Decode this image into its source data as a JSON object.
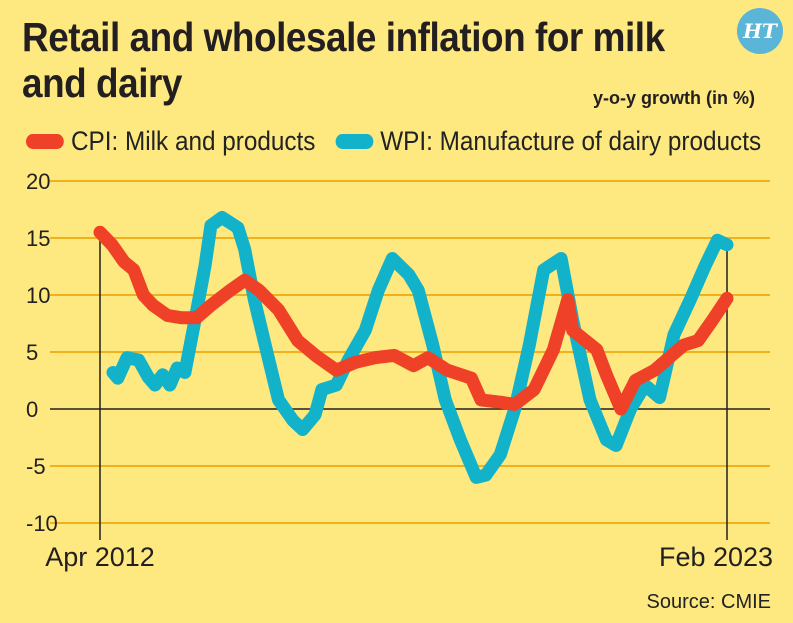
{
  "chart_data": {
    "type": "line",
    "title": "Retail and wholesale inflation for milk and dairy",
    "subtitle": "y-o-y growth (in %)",
    "xlabel": "",
    "ylabel": "y-o-y growth (in %)",
    "x_unit": "months since Apr 2012",
    "x_range": [
      0,
      130
    ],
    "x_tick_labels": [
      "Apr 2012",
      "Feb 2023"
    ],
    "ylim": [
      -10,
      20
    ],
    "y_ticks": [
      -10,
      -5,
      0,
      5,
      10,
      15,
      20
    ],
    "grid": true,
    "legend_placement": "top",
    "source": "Source: CMIE",
    "series": [
      {
        "name": "CPI: Milk and products",
        "color": "#ee4127",
        "x": [
          0,
          2.5,
          5,
          7,
          9,
          11,
          14,
          17,
          20,
          23,
          27,
          30,
          33,
          37,
          41,
          45,
          49,
          53,
          57,
          61,
          65,
          68,
          72,
          77,
          79,
          83,
          86,
          90,
          94,
          97,
          98,
          103,
          105,
          108,
          111,
          115,
          118,
          121,
          124,
          127,
          130
        ],
        "values": [
          15.5,
          14.4,
          12.9,
          12.2,
          10,
          9.1,
          8.2,
          8,
          8,
          9.1,
          10.4,
          11.3,
          10.4,
          8.7,
          6,
          4.6,
          3.4,
          4.1,
          4.5,
          4.7,
          3.8,
          4.5,
          3.4,
          2.7,
          0.8,
          0.6,
          0.4,
          1.7,
          5.2,
          9.6,
          6.9,
          5.2,
          3,
          0,
          2.5,
          3.4,
          4.5,
          5.6,
          6,
          7.8,
          9.7
        ]
      },
      {
        "name": "WPI: Manufacture of dairy products",
        "color": "#13b2cb",
        "x": [
          2.7,
          3.7,
          5.6,
          8,
          10,
          11.4,
          13,
          14.5,
          16,
          17.6,
          19.7,
          21.8,
          23,
          25.3,
          28.6,
          30,
          32,
          35,
          37,
          40,
          42,
          44.6,
          46,
          49,
          51.5,
          55,
          57.7,
          60.6,
          64,
          66,
          69,
          71.6,
          74.7,
          78,
          80,
          83,
          86,
          89,
          92,
          95.6,
          98,
          101.6,
          105,
          107,
          110,
          113,
          116,
          119,
          122.4,
          125.5,
          128,
          130
        ],
        "values": [
          3.2,
          2.7,
          4.5,
          4.3,
          2.8,
          2.1,
          3,
          2.1,
          3.6,
          3.2,
          7.8,
          12.6,
          16.1,
          16.8,
          15.9,
          14,
          9.6,
          4.3,
          0.8,
          -1,
          -1.8,
          -0.5,
          1.7,
          2.1,
          4.3,
          6.9,
          10.4,
          13.2,
          11.8,
          10.4,
          5.6,
          0.8,
          -2.7,
          -6,
          -5.8,
          -4,
          0,
          5.6,
          12.2,
          13.2,
          7.8,
          0.8,
          -2.7,
          -3.2,
          0,
          2.1,
          1,
          6.5,
          9.6,
          12.6,
          14.8,
          14.4
        ]
      }
    ]
  },
  "branding": {
    "logo": "HT"
  }
}
